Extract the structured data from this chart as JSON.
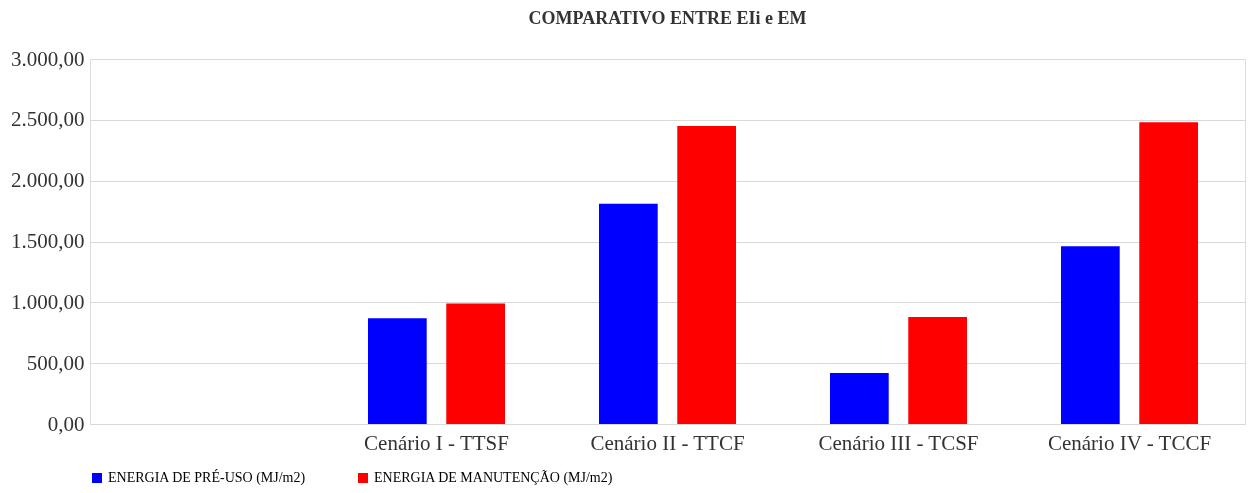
{
  "chart_data": {
    "type": "bar",
    "title": "COMPARATIVO ENTRE EIi e EM",
    "categories": [
      null,
      "Cenário I  - TTSF",
      "Cenário II - TTCF",
      "Cenário III -  TCSF",
      "Cenário IV - TCCF"
    ],
    "series": [
      {
        "name": "ENERGIA DE PRÉ-USO (MJ/m2)",
        "color": "#0000ff",
        "values": [
          null,
          870,
          1810,
          420,
          1460
        ]
      },
      {
        "name": "ENERGIA DE MANUTENÇÃO (MJ/m2)",
        "color": "#ff0000",
        "values": [
          null,
          990,
          2450,
          880,
          2480
        ]
      }
    ],
    "ylim": [
      0,
      3000
    ],
    "yticks": [
      {
        "value": 0,
        "label": "0,00"
      },
      {
        "value": 500,
        "label": "500,00"
      },
      {
        "value": 1000,
        "label": "1.000,00"
      },
      {
        "value": 1500,
        "label": "1.500,00"
      },
      {
        "value": 2000,
        "label": "2.000,00"
      },
      {
        "value": 2500,
        "label": "2.500,00"
      },
      {
        "value": 3000,
        "label": "3.000,00"
      }
    ],
    "grid": "y",
    "legend": "bottom"
  }
}
